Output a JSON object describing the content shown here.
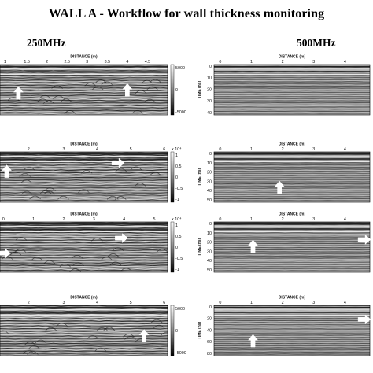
{
  "figure": {
    "title": "WALL A - Workflow for wall thickness monitoring",
    "left_column": "250MHz",
    "right_column": "500MHz"
  },
  "chart_data": [
    {
      "type": "heatmap",
      "column": "250MHz",
      "xlabel": "DISTANCE (m)",
      "xticks": [
        "1",
        "1.5",
        "2",
        "2.5",
        "3",
        "3.5",
        "4",
        "4.5"
      ],
      "colorbar_ticks": [
        "5000",
        "0",
        "-5000"
      ],
      "arrows": [
        "up",
        "up"
      ]
    },
    {
      "type": "heatmap",
      "column": "500MHz",
      "xlabel": "DISTANCE (m)",
      "ylabel": "TIME (ns)",
      "xticks": [
        "0",
        "1",
        "2",
        "3",
        "4"
      ],
      "yticks": [
        "0",
        "10",
        "20",
        "30",
        "40"
      ]
    },
    {
      "type": "heatmap",
      "column": "250MHz",
      "xlabel": "DISTANCE (m)",
      "xticks": [
        "2",
        "3",
        "4",
        "5",
        "6"
      ],
      "colorbar_ticks": [
        "x 10⁴",
        "1",
        "0.5",
        "0",
        "-0.5",
        "-1"
      ],
      "arrows": [
        "up",
        "right"
      ]
    },
    {
      "type": "heatmap",
      "column": "500MHz",
      "xlabel": "DISTANCE (m)",
      "ylabel": "TIME (ns)",
      "xticks": [
        "0",
        "1",
        "2",
        "3",
        "4"
      ],
      "yticks": [
        "0",
        "10",
        "20",
        "30",
        "40",
        "50"
      ],
      "arrows": [
        "up"
      ]
    },
    {
      "type": "heatmap",
      "column": "250MHz",
      "xlabel": "DISTANCE (m)",
      "xticks": [
        "0",
        "1",
        "2",
        "3",
        "4",
        "5"
      ],
      "colorbar_ticks": [
        "x 10⁴",
        "1",
        "0.5",
        "0",
        "-0.5",
        "-1"
      ],
      "arrows": [
        "right",
        "right"
      ]
    },
    {
      "type": "heatmap",
      "column": "500MHz",
      "xlabel": "DISTANCE (m)",
      "ylabel": "TIME (ns)",
      "xticks": [
        "0",
        "1",
        "2",
        "3",
        "4"
      ],
      "yticks": [
        "0",
        "10",
        "20",
        "30",
        "40",
        "50"
      ],
      "arrows": [
        "up",
        "right"
      ]
    },
    {
      "type": "heatmap",
      "column": "250MHz",
      "xlabel": "DISTANCE (m)",
      "xticks": [
        "2",
        "3",
        "4",
        "5",
        "6"
      ],
      "colorbar_ticks": [
        "5000",
        "0",
        "-5000"
      ],
      "arrows": [
        "up"
      ]
    },
    {
      "type": "heatmap",
      "column": "500MHz",
      "xlabel": "DISTANCE (m)",
      "ylabel": "TIME (ns)",
      "xticks": [
        "0",
        "1",
        "2",
        "3",
        "4"
      ],
      "yticks": [
        "0",
        "20",
        "40",
        "60",
        "80"
      ],
      "arrows": [
        "up",
        "right"
      ]
    }
  ]
}
